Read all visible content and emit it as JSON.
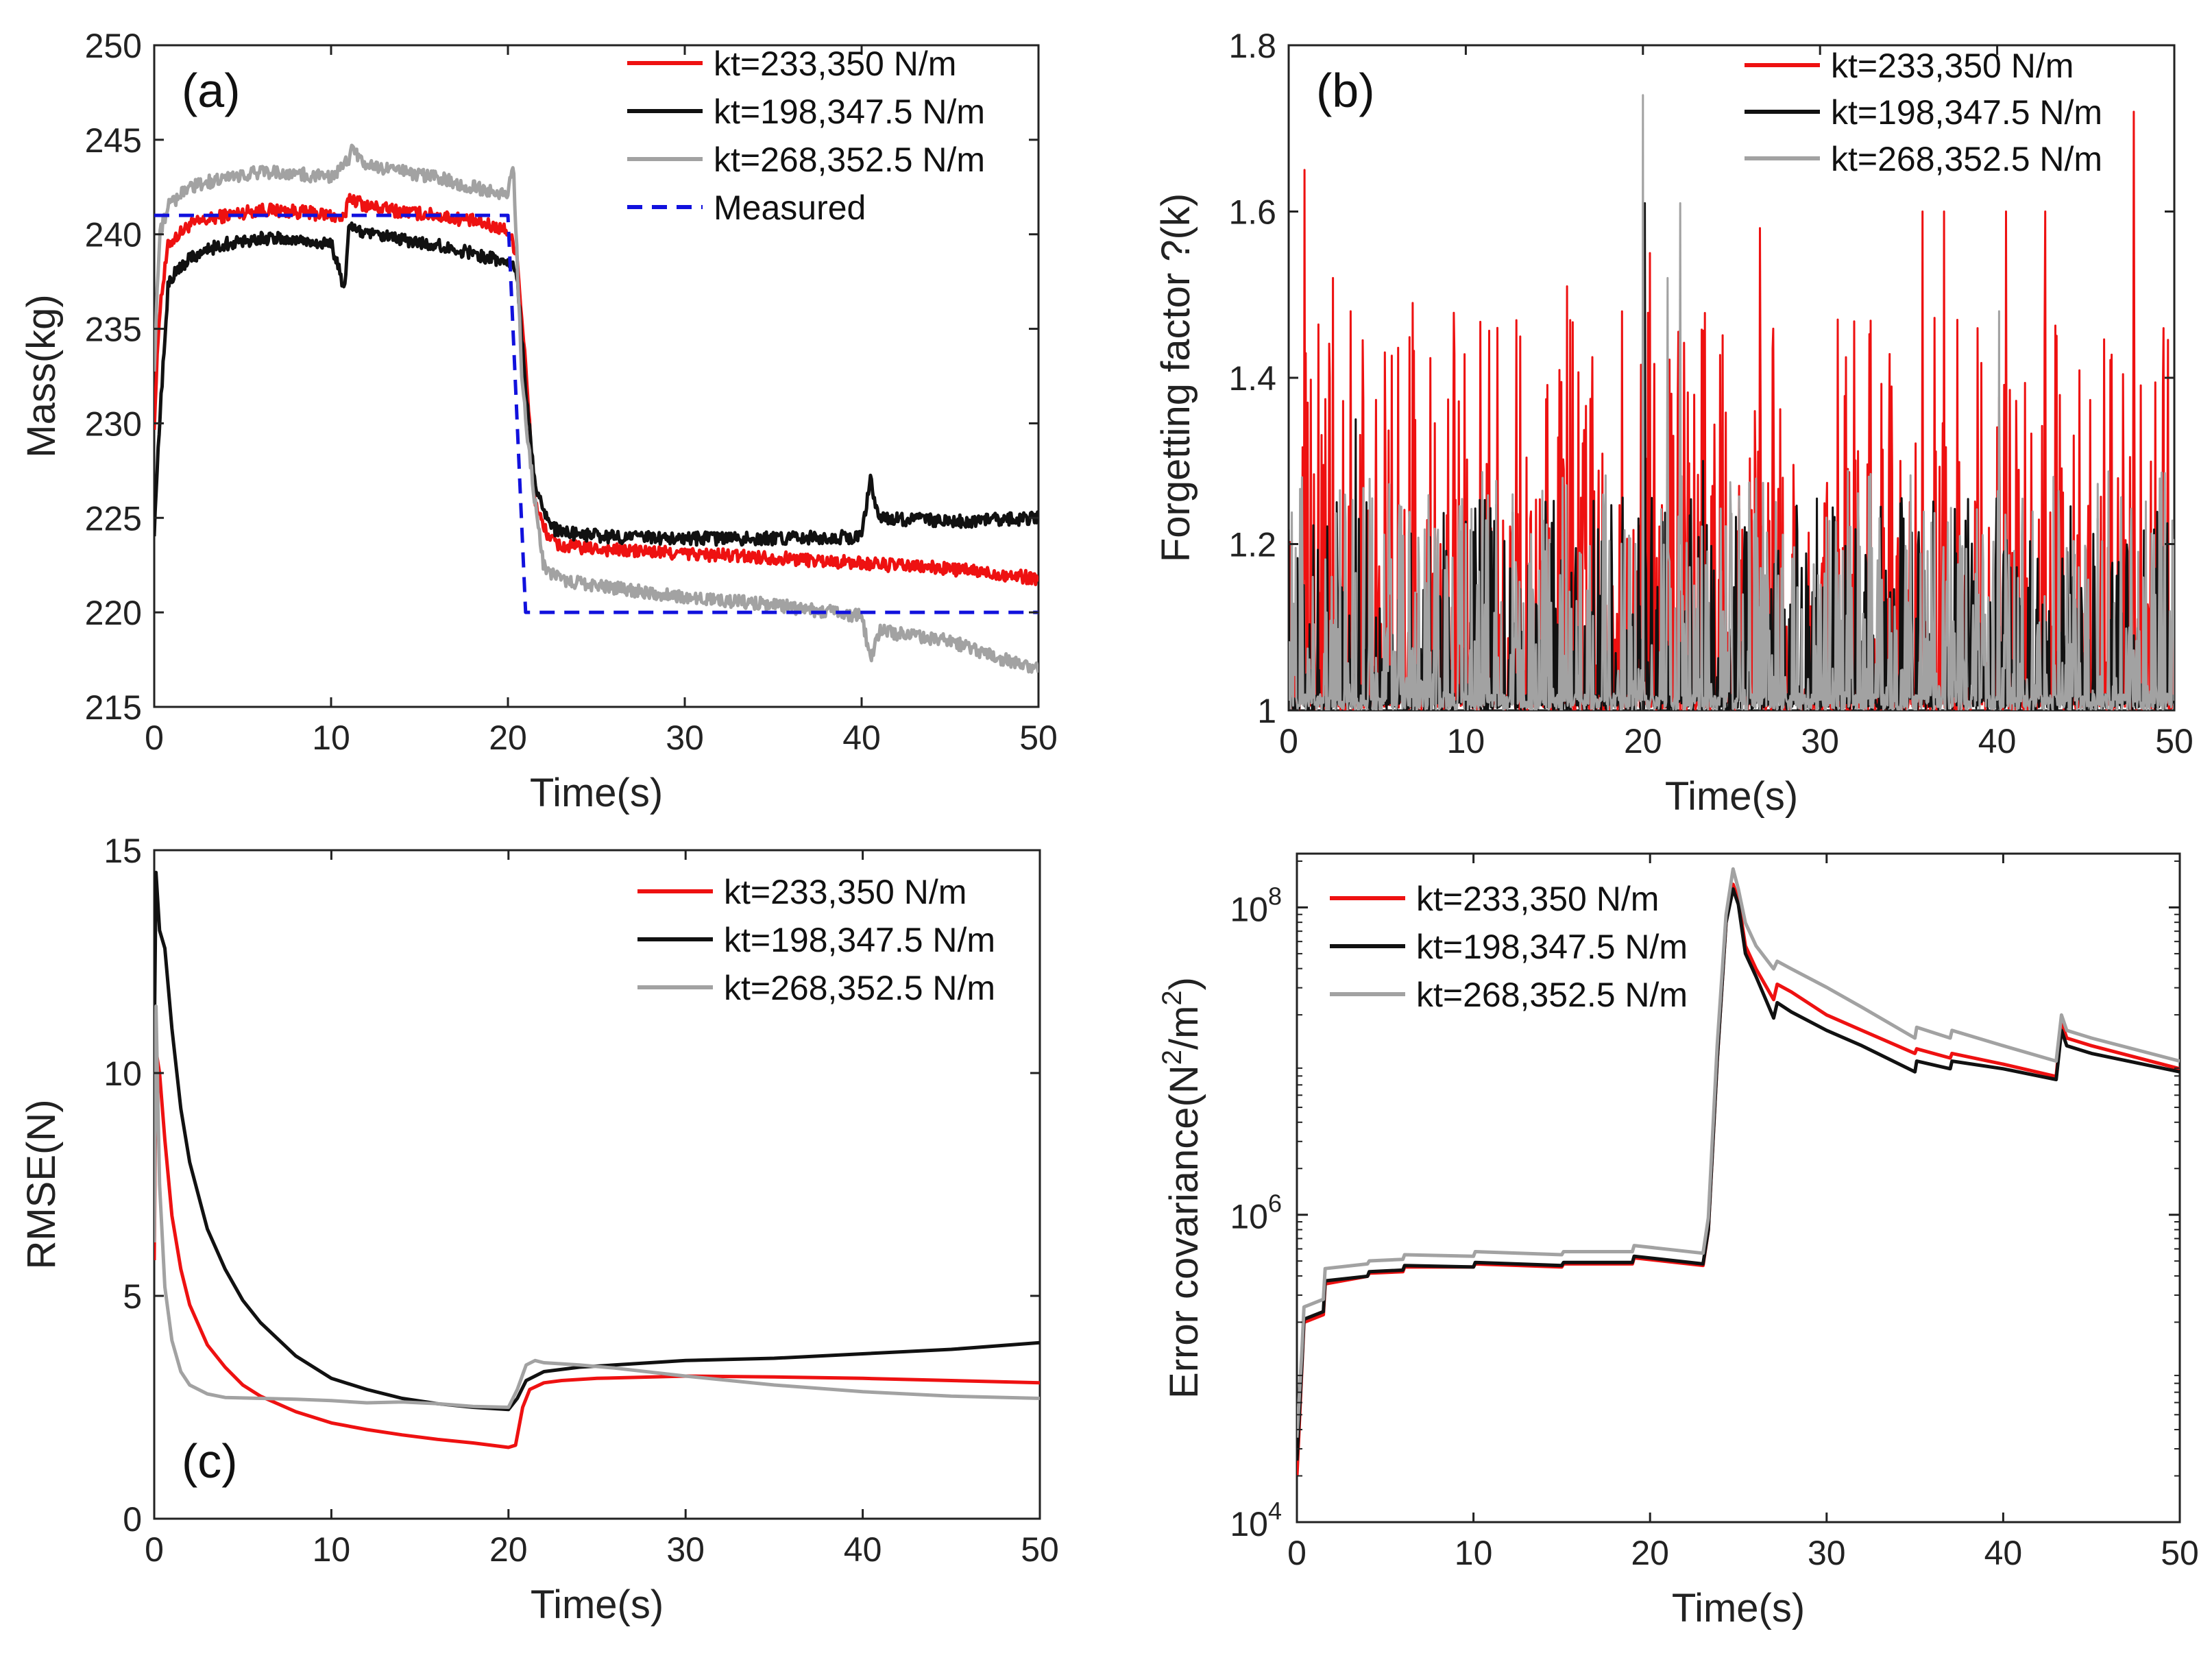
{
  "chart_data": [
    {
      "panel": "a",
      "type": "line",
      "panel_label": "(a)",
      "xlabel": "Time(s)",
      "ylabel": "Mass(kg)",
      "xlim": [
        0,
        50
      ],
      "ylim": [
        215,
        250
      ],
      "xticks": [
        0,
        10,
        20,
        30,
        40,
        50
      ],
      "yticks": [
        215,
        220,
        225,
        230,
        235,
        240,
        245,
        250
      ],
      "legend_position": "top-right",
      "series": [
        {
          "name": "kt=233,350 N/m",
          "color": "#ee1111",
          "dash": false,
          "noise": 0.35,
          "x": [
            0,
            0.3,
            0.8,
            2,
            4,
            6,
            8,
            10,
            10.8,
            11,
            12,
            14,
            16,
            18,
            20,
            20.5,
            21,
            21.5,
            22,
            22.5,
            23,
            26,
            30,
            35,
            40,
            45,
            50
          ],
          "y": [
            230,
            236,
            239.5,
            240.5,
            241,
            241.3,
            241.2,
            241,
            240.8,
            242,
            241.5,
            241.2,
            241,
            240.7,
            240.2,
            239,
            233,
            226,
            224.5,
            223.8,
            223.5,
            223.3,
            223.1,
            222.9,
            222.6,
            222.3,
            221.8
          ]
        },
        {
          "name": "kt=198,347.5 N/m",
          "color": "#111111",
          "dash": false,
          "noise": 0.35,
          "x": [
            0,
            0.3,
            0.8,
            2,
            4,
            6,
            8,
            10,
            10.8,
            11,
            12,
            14,
            16,
            18,
            20,
            20.5,
            21,
            21.5,
            22,
            22.5,
            23,
            26,
            30,
            35,
            40,
            40.5,
            41,
            45,
            50
          ],
          "y": [
            224,
            230,
            237.5,
            238.8,
            239.5,
            239.8,
            239.7,
            239.5,
            237,
            240.5,
            240,
            239.7,
            239.4,
            239,
            238.5,
            238,
            232,
            227,
            225.5,
            224.5,
            224.2,
            224,
            223.9,
            223.9,
            224,
            227,
            225,
            224.8,
            225
          ]
        },
        {
          "name": "kt=268,352.5 N/m",
          "color": "#a2a2a2",
          "dash": false,
          "noise": 0.35,
          "x": [
            0,
            0.3,
            0.8,
            2,
            4,
            6,
            8,
            10,
            11,
            11.2,
            12,
            14,
            16,
            18,
            20,
            20.3,
            20.8,
            21.5,
            22,
            22.5,
            23,
            26,
            30,
            35,
            40,
            40.5,
            41,
            45,
            48,
            50
          ],
          "y": [
            233,
            240,
            241.5,
            242.5,
            243,
            243.3,
            243.2,
            243,
            244,
            244.5,
            243.6,
            243.3,
            243,
            242.5,
            242,
            244,
            232,
            226,
            222.5,
            222,
            221.7,
            221.3,
            220.8,
            220.4,
            219.8,
            217.5,
            219,
            218.5,
            217.5,
            217
          ]
        },
        {
          "name": "Measured",
          "color": "#1111dd",
          "dash": true,
          "noise": 0,
          "x": [
            0,
            20,
            21,
            50
          ],
          "y": [
            241,
            241,
            220,
            220
          ]
        }
      ]
    },
    {
      "panel": "b",
      "type": "line",
      "panel_label": "(b)",
      "xlabel": "Time(s)",
      "ylabel": "Forgetting factor ?(k)",
      "xlim": [
        0,
        50
      ],
      "ylim": [
        1,
        1.8
      ],
      "xticks": [
        0,
        10,
        20,
        30,
        40,
        50
      ],
      "yticks": [
        1,
        1.2,
        1.4,
        1.6,
        1.8
      ],
      "legend_position": "top-right",
      "series": [
        {
          "name": "kt=233,350 N/m",
          "color": "#ee1111",
          "base": 1.1,
          "noise_amplitude": 0.2,
          "spikes": [
            {
              "x": 0.9,
              "y": 1.65
            },
            {
              "x": 2.5,
              "y": 1.52
            },
            {
              "x": 3.5,
              "y": 1.48
            },
            {
              "x": 7,
              "y": 1.49
            },
            {
              "x": 11.8,
              "y": 1.46
            },
            {
              "x": 15.7,
              "y": 1.51
            },
            {
              "x": 20.4,
              "y": 1.55
            },
            {
              "x": 26.6,
              "y": 1.58
            },
            {
              "x": 31,
              "y": 1.47
            },
            {
              "x": 35.8,
              "y": 1.6
            },
            {
              "x": 37,
              "y": 1.6
            },
            {
              "x": 40.5,
              "y": 1.6
            },
            {
              "x": 42.7,
              "y": 1.6
            },
            {
              "x": 47.7,
              "y": 1.72
            }
          ]
        },
        {
          "name": "kt=198,347.5 N/m",
          "color": "#111111",
          "base": 1.06,
          "noise_amplitude": 0.1,
          "spikes": [
            {
              "x": 3.8,
              "y": 1.35
            },
            {
              "x": 14.8,
              "y": 1.2
            },
            {
              "x": 20.1,
              "y": 1.61
            },
            {
              "x": 23.4,
              "y": 1.3
            }
          ]
        },
        {
          "name": "kt=268,352.5 N/m",
          "color": "#a2a2a2",
          "base": 1.06,
          "noise_amplitude": 0.12,
          "spikes": [
            {
              "x": 20,
              "y": 1.74
            },
            {
              "x": 21.4,
              "y": 1.52
            },
            {
              "x": 22.1,
              "y": 1.61
            },
            {
              "x": 40.1,
              "y": 1.48
            }
          ]
        }
      ]
    },
    {
      "panel": "c",
      "type": "line",
      "panel_label": "(c)",
      "xlabel": "Time(s)",
      "ylabel": "RMSE(N)",
      "xlim": [
        0,
        50
      ],
      "ylim": [
        0,
        15
      ],
      "xticks": [
        0,
        10,
        20,
        30,
        40,
        50
      ],
      "yticks": [
        0,
        5,
        10,
        15
      ],
      "legend_position": "top-right",
      "series": [
        {
          "name": "kt=233,350 N/m",
          "color": "#ee1111",
          "x": [
            0,
            0.1,
            0.3,
            0.6,
            1,
            1.5,
            2,
            3,
            4,
            5,
            6,
            8,
            10,
            12,
            14,
            16,
            18,
            20,
            20.4,
            20.8,
            21.2,
            22,
            23,
            25,
            30,
            35,
            40,
            45,
            50
          ],
          "y": [
            5.8,
            10.5,
            10,
            8.5,
            6.8,
            5.6,
            4.8,
            3.9,
            3.4,
            3.0,
            2.75,
            2.4,
            2.15,
            2.0,
            1.88,
            1.78,
            1.7,
            1.6,
            1.65,
            2.5,
            2.9,
            3.05,
            3.1,
            3.15,
            3.2,
            3.18,
            3.15,
            3.1,
            3.05
          ]
        },
        {
          "name": "kt=198,347.5 N/m",
          "color": "#111111",
          "x": [
            0,
            0.1,
            0.3,
            0.6,
            1,
            1.5,
            2,
            3,
            4,
            5,
            6,
            8,
            10,
            12,
            14,
            16,
            18,
            20,
            20.5,
            21,
            22,
            24,
            26,
            30,
            35,
            40,
            45,
            50
          ],
          "y": [
            10.5,
            14.5,
            13.2,
            12.8,
            11,
            9.2,
            8.0,
            6.5,
            5.6,
            4.9,
            4.4,
            3.65,
            3.15,
            2.9,
            2.7,
            2.58,
            2.5,
            2.45,
            2.7,
            3.1,
            3.3,
            3.4,
            3.45,
            3.55,
            3.6,
            3.7,
            3.8,
            3.95
          ]
        },
        {
          "name": "kt=268,352.5 N/m",
          "color": "#a2a2a2",
          "x": [
            0,
            0.1,
            0.3,
            0.6,
            1,
            1.5,
            2,
            3,
            4,
            6,
            8,
            10,
            12,
            14,
            16,
            18,
            20,
            20.5,
            21,
            21.5,
            22,
            24,
            26,
            30,
            35,
            40,
            45,
            50
          ],
          "y": [
            6.2,
            11.5,
            7.5,
            5.2,
            4.0,
            3.3,
            3.0,
            2.8,
            2.72,
            2.7,
            2.68,
            2.65,
            2.6,
            2.62,
            2.58,
            2.52,
            2.5,
            2.9,
            3.45,
            3.55,
            3.5,
            3.45,
            3.38,
            3.2,
            3.0,
            2.85,
            2.75,
            2.7
          ]
        }
      ]
    },
    {
      "panel": "d",
      "type": "line",
      "yscale": "log",
      "xlabel": "Time(s)",
      "ylabel_main": "Error covariance(N",
      "ylabel_sup1": "2",
      "ylabel_mid": "/m",
      "ylabel_sup2": "2",
      "ylabel_end": ")",
      "xlim": [
        0,
        50
      ],
      "ylim_exponent": [
        4,
        8.35
      ],
      "xticks": [
        0,
        10,
        20,
        30,
        40,
        50
      ],
      "ytick_base": "10",
      "ytick_exponents": [
        "4",
        "6",
        "8"
      ],
      "legend_position": "top-left",
      "series": [
        {
          "name": "kt=233,350 N/m",
          "color": "#ee1111",
          "x": [
            0,
            0.3,
            0.4,
            1.5,
            1.6,
            4,
            4.1,
            6,
            6.1,
            10,
            10.1,
            15,
            15.1,
            19,
            19.1,
            23,
            23.3,
            23.8,
            24.3,
            24.7,
            25,
            25.4,
            26,
            27,
            27.2,
            28,
            30,
            32,
            35,
            35.1,
            37,
            37.1,
            40,
            43,
            43.3,
            43.6,
            45,
            50
          ],
          "lgy": [
            4.3,
            5.05,
            5.3,
            5.35,
            5.55,
            5.6,
            5.62,
            5.63,
            5.66,
            5.66,
            5.68,
            5.66,
            5.68,
            5.68,
            5.72,
            5.67,
            5.9,
            7.0,
            7.9,
            8.15,
            8.05,
            7.75,
            7.6,
            7.4,
            7.5,
            7.45,
            7.3,
            7.2,
            7.05,
            7.08,
            7.02,
            7.05,
            6.98,
            6.9,
            7.25,
            7.15,
            7.1,
            6.95
          ]
        },
        {
          "name": "kt=198,347.5 N/m",
          "color": "#111111",
          "x": [
            0,
            0.3,
            0.4,
            1.5,
            1.6,
            4,
            4.1,
            6,
            6.1,
            10,
            10.1,
            15,
            15.1,
            19,
            19.1,
            23,
            23.3,
            23.8,
            24.3,
            24.7,
            25,
            25.4,
            26,
            27,
            27.2,
            28,
            30,
            32,
            35,
            35.1,
            37,
            37.1,
            40,
            43,
            43.3,
            43.6,
            45,
            50
          ],
          "lgy": [
            4.4,
            5.07,
            5.32,
            5.37,
            5.57,
            5.6,
            5.63,
            5.64,
            5.67,
            5.66,
            5.69,
            5.67,
            5.69,
            5.69,
            5.73,
            5.68,
            5.9,
            7.0,
            7.9,
            8.12,
            8.02,
            7.7,
            7.55,
            7.28,
            7.38,
            7.32,
            7.2,
            7.1,
            6.93,
            7.0,
            6.95,
            7.0,
            6.95,
            6.88,
            7.2,
            7.1,
            7.05,
            6.93
          ]
        },
        {
          "name": "kt=268,352.5 N/m",
          "color": "#a2a2a2",
          "x": [
            0,
            0.3,
            0.4,
            1.5,
            1.6,
            4,
            4.1,
            6,
            6.1,
            10,
            10.1,
            15,
            15.1,
            19,
            19.1,
            23,
            23.3,
            23.8,
            24.3,
            24.7,
            25,
            25.4,
            26,
            27,
            27.2,
            28,
            30,
            32,
            35,
            35.1,
            37,
            37.1,
            40,
            43,
            43.3,
            43.6,
            45,
            50
          ],
          "lgy": [
            4.55,
            5.15,
            5.4,
            5.45,
            5.65,
            5.68,
            5.7,
            5.71,
            5.74,
            5.73,
            5.76,
            5.74,
            5.76,
            5.76,
            5.8,
            5.75,
            5.98,
            7.1,
            7.95,
            8.25,
            8.12,
            7.9,
            7.75,
            7.6,
            7.65,
            7.6,
            7.48,
            7.35,
            7.15,
            7.22,
            7.15,
            7.2,
            7.1,
            7.0,
            7.3,
            7.2,
            7.15,
            7.0
          ]
        }
      ]
    }
  ]
}
